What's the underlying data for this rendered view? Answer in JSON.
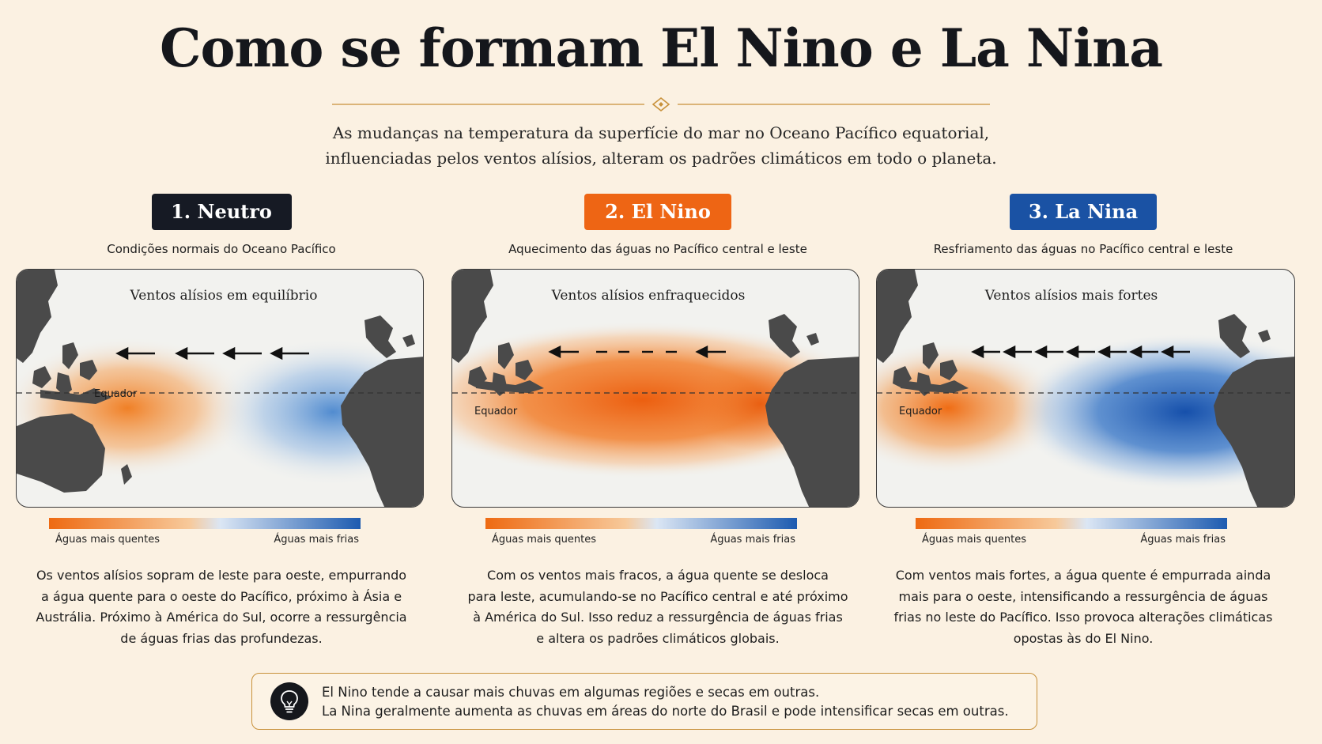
{
  "title": "Como se formam El Nino e La Nina",
  "subtitle": [
    "As mudanças na temperatura da superfície do mar no Oceano Pacífico equatorial,",
    "influenciadas pelos ventos alísios, alteram os padrões climáticos em todo o planeta."
  ],
  "colors": {
    "neutral": "#161a24",
    "el_nino": "#ee6514",
    "la_nina": "#1a52a4",
    "warm": "#ee6a12",
    "cold": "#1d5bb0",
    "border": "#c8913a"
  },
  "panels": [
    {
      "badge": "1. Neutro",
      "caption": "Condições normais do Oceano Pacífico",
      "map_title": "Ventos alísios em equilíbrio",
      "equator_label": "Equador",
      "legend_warm": "Águas mais quentes",
      "legend_cold": "Águas mais frias",
      "description": [
        "Os ventos alísios sopram de leste para oeste, empurrando",
        "a água quente para o oeste do Pacífico, próximo à Ásia e",
        "Austrália. Próximo à América do Sul, ocorre a ressurgência",
        "de águas frias das profundezas."
      ]
    },
    {
      "badge": "2. El Nino",
      "caption": "Aquecimento das águas no Pacífico central e leste",
      "map_title": "Ventos alísios enfraquecidos",
      "equator_label": "Equador",
      "legend_warm": "Águas mais quentes",
      "legend_cold": "Águas mais frias",
      "description": [
        "Com os ventos mais fracos, a água quente se desloca",
        "para leste, acumulando-se no Pacífico central e até próximo",
        "à América do Sul. Isso reduz a ressurgência de águas frias",
        "e altera os padrões climáticos globais."
      ]
    },
    {
      "badge": "3. La Nina",
      "caption": "Resfriamento das águas no Pacífico central e leste",
      "map_title": "Ventos alísios mais fortes",
      "equator_label": "Equador",
      "legend_warm": "Águas mais quentes",
      "legend_cold": "Águas mais frias",
      "description": [
        "Com ventos mais fortes, a água quente é empurrada ainda",
        "mais para o oeste, intensificando a ressurgência de águas",
        "frias no leste do Pacífico. Isso provoca alterações climáticas",
        "opostas às do El Nino."
      ]
    }
  ],
  "note": {
    "icon": "lightbulb-icon",
    "lines": [
      "El Nino tende a causar mais chuvas em algumas regiões e secas em outras.",
      "La Nina geralmente aumenta as chuvas em áreas do norte do Brasil e pode intensificar secas em outras."
    ]
  }
}
